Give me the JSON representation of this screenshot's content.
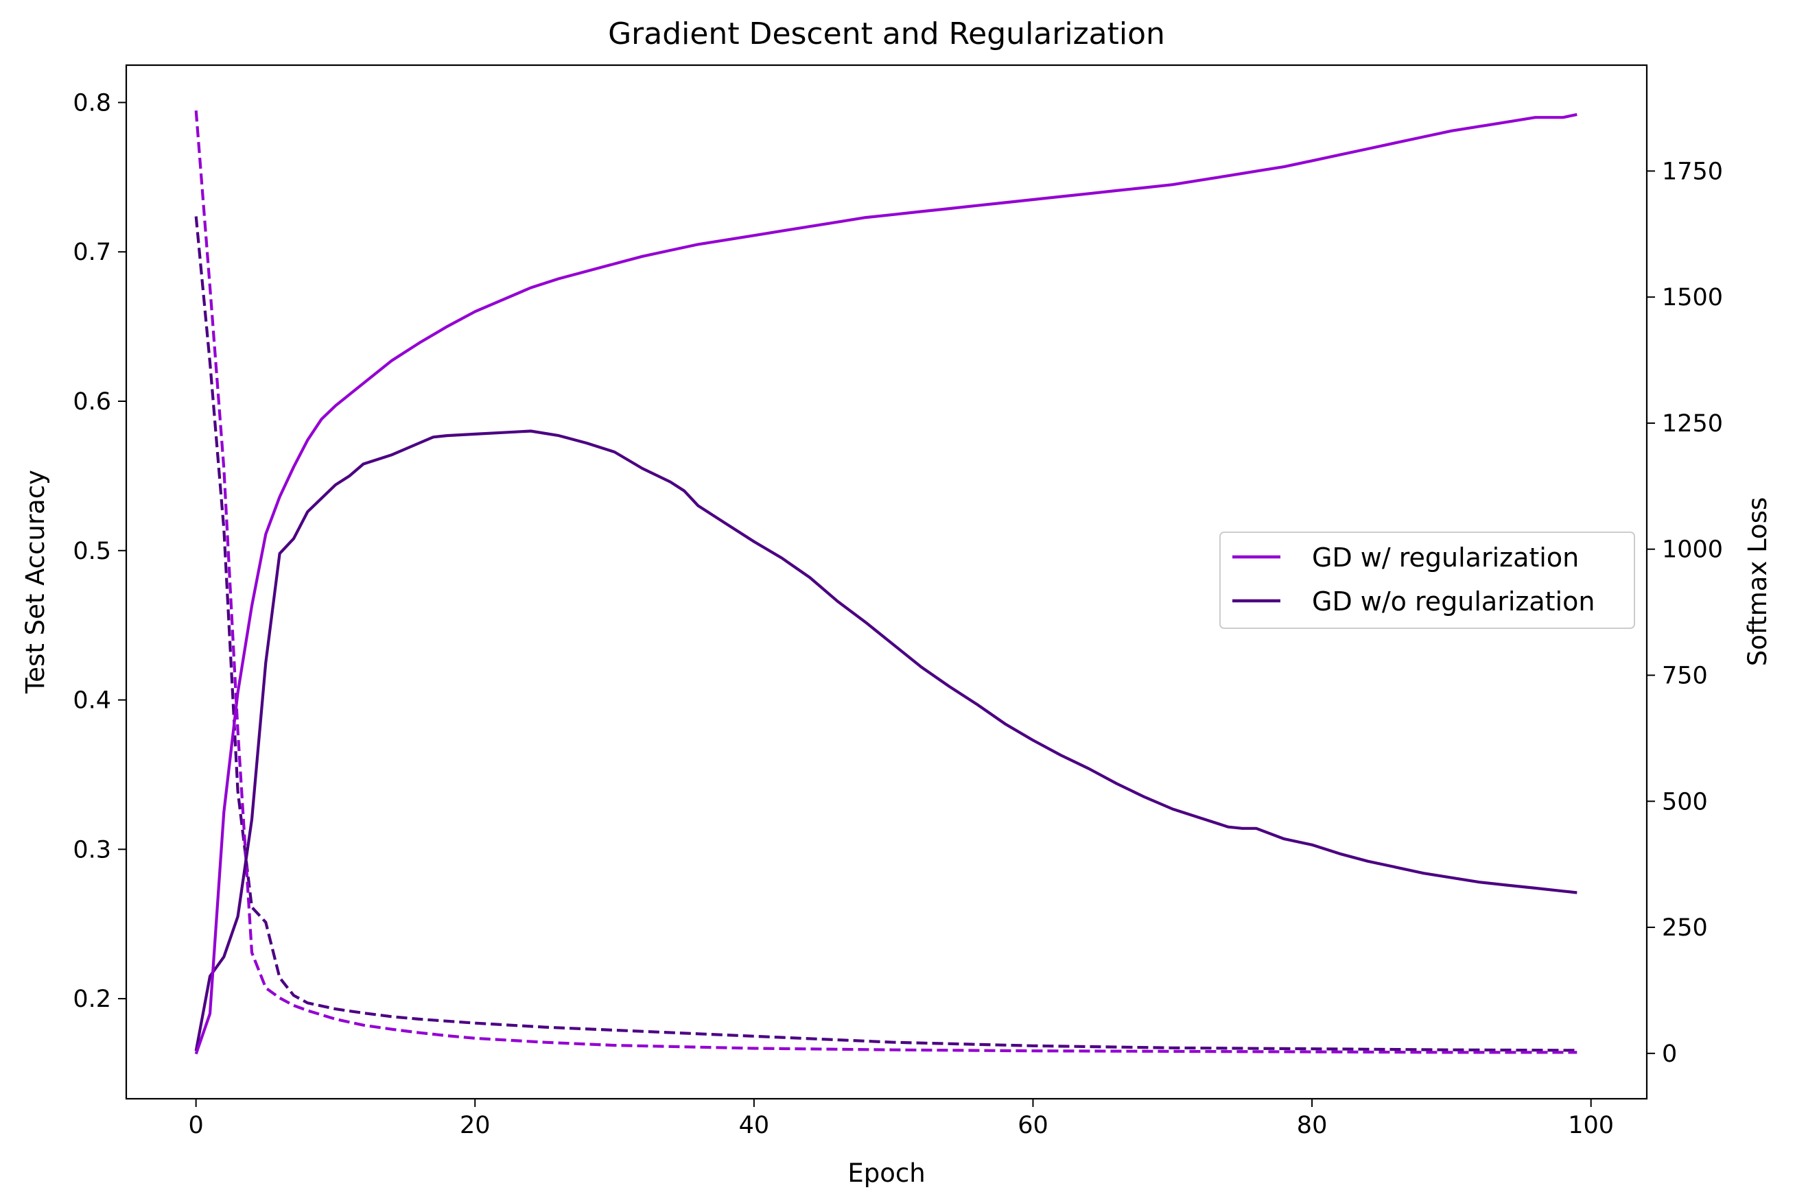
{
  "chart_data": {
    "type": "line",
    "title": "Gradient Descent and Regularization",
    "xlabel": "Epoch",
    "ylabel_left": "Test Set Accuracy",
    "ylabel_right": "Softmax Loss",
    "xlim": [
      -5,
      104
    ],
    "ylim_left": [
      0.133,
      0.825
    ],
    "ylim_right": [
      -90,
      1960
    ],
    "xticks": [
      0,
      20,
      40,
      60,
      80,
      100
    ],
    "yticks_left": [
      0.2,
      0.3,
      0.4,
      0.5,
      0.6,
      0.7,
      0.8
    ],
    "yticks_right": [
      0,
      250,
      500,
      750,
      1000,
      1250,
      1500,
      1750
    ],
    "grid": false,
    "legend_position": "center-right",
    "colors": {
      "with_reg": "#9400D3",
      "without_reg": "#4B0082"
    },
    "legend": [
      {
        "label": "GD w/ regularization",
        "color": "#9400D3"
      },
      {
        "label": "GD w/o regularization",
        "color": "#4B0082"
      }
    ],
    "series": [
      {
        "name": "GD w/ regularization",
        "axis": "left",
        "style": "solid",
        "color": "#9400D3",
        "x": [
          0,
          1,
          2,
          3,
          4,
          5,
          6,
          7,
          8,
          9,
          10,
          12,
          14,
          16,
          18,
          20,
          22,
          24,
          26,
          28,
          30,
          32,
          34,
          36,
          38,
          40,
          42,
          44,
          46,
          48,
          50,
          52,
          54,
          56,
          58,
          60,
          62,
          64,
          66,
          68,
          70,
          72,
          74,
          76,
          78,
          80,
          82,
          84,
          86,
          88,
          90,
          92,
          94,
          96,
          98,
          99
        ],
        "y": [
          0.163,
          0.19,
          0.325,
          0.405,
          0.463,
          0.511,
          0.536,
          0.556,
          0.574,
          0.588,
          0.597,
          0.612,
          0.627,
          0.639,
          0.65,
          0.66,
          0.668,
          0.676,
          0.682,
          0.687,
          0.692,
          0.697,
          0.701,
          0.705,
          0.708,
          0.711,
          0.714,
          0.717,
          0.72,
          0.723,
          0.725,
          0.727,
          0.729,
          0.731,
          0.733,
          0.735,
          0.737,
          0.739,
          0.741,
          0.743,
          0.745,
          0.748,
          0.751,
          0.754,
          0.757,
          0.761,
          0.765,
          0.769,
          0.773,
          0.777,
          0.781,
          0.784,
          0.787,
          0.79,
          0.79,
          0.792
        ]
      },
      {
        "name": "GD w/o regularization",
        "axis": "left",
        "style": "solid",
        "color": "#4B0082",
        "x": [
          0,
          1,
          2,
          3,
          4,
          5,
          6,
          7,
          8,
          9,
          10,
          11,
          12,
          14,
          16,
          17,
          18,
          20,
          22,
          24,
          26,
          28,
          30,
          32,
          34,
          35,
          36,
          38,
          40,
          42,
          44,
          46,
          48,
          50,
          52,
          54,
          56,
          58,
          60,
          62,
          64,
          66,
          68,
          70,
          72,
          74,
          75,
          76,
          78,
          80,
          82,
          84,
          86,
          88,
          90,
          92,
          94,
          96,
          98,
          99
        ],
        "y": [
          0.165,
          0.215,
          0.228,
          0.255,
          0.32,
          0.425,
          0.498,
          0.508,
          0.526,
          0.535,
          0.544,
          0.55,
          0.558,
          0.564,
          0.572,
          0.576,
          0.577,
          0.578,
          0.579,
          0.58,
          0.577,
          0.572,
          0.566,
          0.555,
          0.546,
          0.54,
          0.53,
          0.518,
          0.506,
          0.495,
          0.482,
          0.466,
          0.452,
          0.437,
          0.422,
          0.409,
          0.397,
          0.384,
          0.373,
          0.363,
          0.354,
          0.344,
          0.335,
          0.327,
          0.321,
          0.315,
          0.314,
          0.314,
          0.307,
          0.303,
          0.297,
          0.292,
          0.288,
          0.284,
          0.281,
          0.278,
          0.276,
          0.274,
          0.272,
          0.271
        ]
      },
      {
        "name": "GD w/ regularization",
        "axis": "right",
        "style": "dashed",
        "color": "#9400D3",
        "x": [
          0,
          1,
          2,
          3,
          4,
          5,
          6,
          7,
          8,
          10,
          12,
          14,
          16,
          18,
          20,
          25,
          30,
          40,
          50,
          60,
          70,
          80,
          90,
          99
        ],
        "y": [
          1870,
          1520,
          1160,
          640,
          200,
          130,
          110,
          95,
          85,
          68,
          56,
          48,
          41,
          35,
          30,
          22,
          16,
          10,
          7,
          5,
          4,
          3,
          2,
          2
        ]
      },
      {
        "name": "GD w/o regularization",
        "axis": "right",
        "style": "dashed",
        "color": "#4B0082",
        "x": [
          0,
          1,
          2,
          3,
          4,
          5,
          6,
          7,
          8,
          10,
          12,
          14,
          16,
          18,
          20,
          25,
          30,
          40,
          50,
          60,
          70,
          80,
          90,
          99
        ],
        "y": [
          1660,
          1370,
          1040,
          520,
          290,
          260,
          150,
          115,
          100,
          88,
          80,
          73,
          68,
          64,
          60,
          52,
          46,
          34,
          22,
          15,
          11,
          9,
          7,
          6
        ]
      }
    ]
  }
}
